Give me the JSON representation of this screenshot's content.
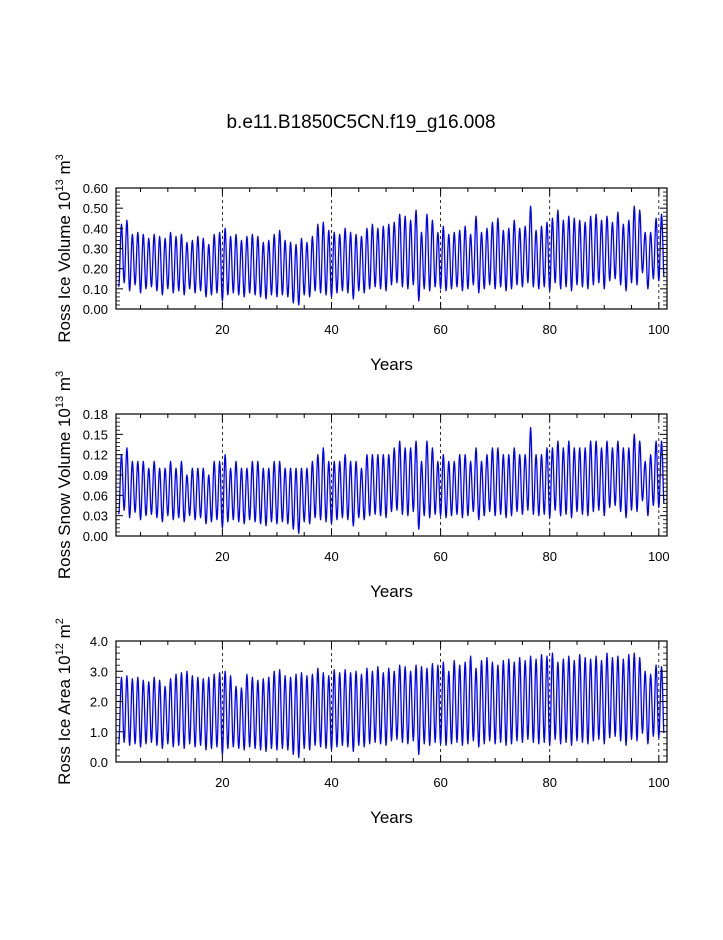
{
  "title": "b.e11.B1850C5CN.f19_g16.008",
  "colors": {
    "series": "#0000ff",
    "axis": "#000000",
    "grid": "#000000",
    "background": "#ffffff"
  },
  "chart_data": [
    {
      "type": "line",
      "ylabel": {
        "main": "Ross Ice Volume 10",
        "sup1": "13",
        "mid": " m",
        "sup2": "3"
      },
      "xlabel": "Years",
      "xlim": [
        0.5,
        101.5
      ],
      "xticks": [
        20,
        40,
        60,
        80,
        100
      ],
      "xtick_labels": [
        "20",
        "40",
        "60",
        "80",
        "100"
      ],
      "ylim": [
        0,
        0.6
      ],
      "yticks": [
        0,
        0.1,
        0.2,
        0.3,
        0.4,
        0.5,
        0.6
      ],
      "ytick_labels": [
        "0.00",
        "0.10",
        "0.20",
        "0.30",
        "0.40",
        "0.50",
        "0.60"
      ],
      "grid": "dashed vertical at major x ticks",
      "annual_max": [
        0.42,
        0.44,
        0.37,
        0.38,
        0.37,
        0.35,
        0.37,
        0.36,
        0.35,
        0.38,
        0.36,
        0.37,
        0.33,
        0.34,
        0.36,
        0.35,
        0.32,
        0.37,
        0.38,
        0.4,
        0.36,
        0.37,
        0.34,
        0.36,
        0.37,
        0.36,
        0.33,
        0.34,
        0.37,
        0.39,
        0.34,
        0.33,
        0.32,
        0.35,
        0.33,
        0.36,
        0.42,
        0.43,
        0.39,
        0.38,
        0.37,
        0.4,
        0.38,
        0.37,
        0.36,
        0.4,
        0.42,
        0.4,
        0.41,
        0.42,
        0.43,
        0.47,
        0.46,
        0.44,
        0.49,
        0.38,
        0.47,
        0.44,
        0.38,
        0.41,
        0.37,
        0.38,
        0.39,
        0.41,
        0.37,
        0.46,
        0.38,
        0.4,
        0.43,
        0.45,
        0.39,
        0.4,
        0.44,
        0.4,
        0.41,
        0.51,
        0.39,
        0.41,
        0.43,
        0.45,
        0.49,
        0.44,
        0.46,
        0.45,
        0.44,
        0.43,
        0.46,
        0.47,
        0.44,
        0.46,
        0.43,
        0.48,
        0.42,
        0.44,
        0.51,
        0.49,
        0.38,
        0.38,
        0.45,
        0.47
      ],
      "annual_min": [
        0.11,
        0.13,
        0.09,
        0.12,
        0.08,
        0.1,
        0.11,
        0.09,
        0.07,
        0.1,
        0.08,
        0.09,
        0.07,
        0.1,
        0.08,
        0.09,
        0.06,
        0.07,
        0.08,
        0.04,
        0.07,
        0.08,
        0.07,
        0.06,
        0.08,
        0.07,
        0.06,
        0.05,
        0.07,
        0.06,
        0.07,
        0.06,
        0.03,
        0.02,
        0.07,
        0.06,
        0.09,
        0.08,
        0.07,
        0.06,
        0.08,
        0.09,
        0.08,
        0.05,
        0.09,
        0.08,
        0.1,
        0.11,
        0.1,
        0.09,
        0.12,
        0.13,
        0.11,
        0.1,
        0.12,
        0.04,
        0.1,
        0.09,
        0.11,
        0.1,
        0.09,
        0.1,
        0.11,
        0.09,
        0.1,
        0.12,
        0.08,
        0.1,
        0.12,
        0.1,
        0.11,
        0.09,
        0.1,
        0.12,
        0.11,
        0.13,
        0.11,
        0.1,
        0.11,
        0.09,
        0.13,
        0.1,
        0.11,
        0.09,
        0.12,
        0.11,
        0.1,
        0.12,
        0.13,
        0.1,
        0.14,
        0.15,
        0.12,
        0.09,
        0.13,
        0.12,
        0.18,
        0.1,
        0.15,
        0.14
      ]
    },
    {
      "type": "line",
      "ylabel": {
        "main": "Ross Snow Volume 10",
        "sup1": "13",
        "mid": " m",
        "sup2": "3"
      },
      "xlabel": "Years",
      "xlim": [
        0.5,
        101.5
      ],
      "xticks": [
        20,
        40,
        60,
        80,
        100
      ],
      "xtick_labels": [
        "20",
        "40",
        "60",
        "80",
        "100"
      ],
      "ylim": [
        0,
        0.18
      ],
      "yticks": [
        0,
        0.03,
        0.06,
        0.09,
        0.12,
        0.15,
        0.18
      ],
      "ytick_labels": [
        "0.00",
        "0.03",
        "0.06",
        "0.09",
        "0.12",
        "0.15",
        "0.18"
      ],
      "grid": "dashed vertical at major x ticks",
      "annual_max": [
        0.12,
        0.13,
        0.11,
        0.11,
        0.11,
        0.1,
        0.11,
        0.1,
        0.1,
        0.11,
        0.1,
        0.11,
        0.09,
        0.1,
        0.1,
        0.1,
        0.09,
        0.11,
        0.11,
        0.12,
        0.1,
        0.11,
        0.1,
        0.1,
        0.11,
        0.11,
        0.1,
        0.1,
        0.11,
        0.11,
        0.1,
        0.1,
        0.1,
        0.1,
        0.1,
        0.11,
        0.12,
        0.13,
        0.11,
        0.11,
        0.11,
        0.12,
        0.11,
        0.11,
        0.1,
        0.12,
        0.12,
        0.12,
        0.12,
        0.12,
        0.13,
        0.14,
        0.13,
        0.13,
        0.14,
        0.11,
        0.14,
        0.13,
        0.11,
        0.12,
        0.11,
        0.11,
        0.12,
        0.12,
        0.11,
        0.13,
        0.11,
        0.12,
        0.13,
        0.13,
        0.12,
        0.12,
        0.13,
        0.12,
        0.12,
        0.16,
        0.12,
        0.12,
        0.13,
        0.13,
        0.14,
        0.13,
        0.14,
        0.13,
        0.13,
        0.13,
        0.14,
        0.14,
        0.13,
        0.14,
        0.13,
        0.14,
        0.13,
        0.13,
        0.15,
        0.14,
        0.11,
        0.12,
        0.14,
        0.14
      ],
      "annual_min": [
        0.032,
        0.038,
        0.027,
        0.035,
        0.024,
        0.03,
        0.032,
        0.027,
        0.021,
        0.03,
        0.024,
        0.027,
        0.021,
        0.03,
        0.024,
        0.027,
        0.018,
        0.021,
        0.024,
        0.012,
        0.021,
        0.024,
        0.021,
        0.018,
        0.024,
        0.021,
        0.018,
        0.015,
        0.021,
        0.018,
        0.021,
        0.018,
        0.01,
        0.004,
        0.021,
        0.018,
        0.027,
        0.024,
        0.021,
        0.018,
        0.024,
        0.027,
        0.024,
        0.015,
        0.027,
        0.024,
        0.03,
        0.032,
        0.03,
        0.027,
        0.036,
        0.038,
        0.032,
        0.03,
        0.036,
        0.01,
        0.03,
        0.027,
        0.032,
        0.03,
        0.027,
        0.03,
        0.032,
        0.027,
        0.03,
        0.036,
        0.024,
        0.03,
        0.036,
        0.03,
        0.032,
        0.027,
        0.03,
        0.036,
        0.032,
        0.038,
        0.032,
        0.03,
        0.032,
        0.027,
        0.038,
        0.03,
        0.032,
        0.027,
        0.036,
        0.032,
        0.03,
        0.036,
        0.038,
        0.03,
        0.042,
        0.045,
        0.036,
        0.027,
        0.038,
        0.036,
        0.052,
        0.03,
        0.045,
        0.042
      ]
    },
    {
      "type": "line",
      "ylabel": {
        "main": "Ross Ice Area 10",
        "sup1": "12",
        "mid": " m",
        "sup2": "2"
      },
      "xlabel": "Years",
      "xlim": [
        0.5,
        101.5
      ],
      "xticks": [
        20,
        40,
        60,
        80,
        100
      ],
      "xtick_labels": [
        "20",
        "40",
        "60",
        "80",
        "100"
      ],
      "ylim": [
        0,
        4.0
      ],
      "yticks": [
        0,
        1,
        2,
        3,
        4
      ],
      "ytick_labels": [
        "0.0",
        "1.0",
        "2.0",
        "3.0",
        "4.0"
      ],
      "grid": "dashed vertical at major x ticks",
      "annual_max": [
        2.8,
        2.85,
        2.75,
        2.8,
        2.7,
        2.65,
        2.8,
        2.7,
        2.5,
        2.75,
        2.9,
        2.95,
        3.0,
        2.85,
        2.8,
        2.75,
        2.8,
        2.9,
        2.95,
        3.0,
        2.85,
        2.5,
        2.45,
        2.9,
        2.8,
        2.7,
        2.75,
        2.8,
        3.0,
        3.05,
        2.85,
        2.8,
        2.9,
        2.95,
        2.85,
        2.9,
        3.1,
        2.95,
        2.85,
        3.05,
        2.95,
        3.05,
        2.95,
        3.0,
        2.9,
        3.1,
        3.0,
        3.15,
        2.95,
        3.1,
        3.0,
        3.2,
        3.15,
        3.0,
        3.2,
        3.15,
        3.1,
        3.25,
        3.2,
        3.3,
        3.0,
        3.35,
        3.2,
        3.3,
        3.5,
        3.1,
        3.35,
        3.45,
        3.3,
        3.2,
        3.35,
        3.4,
        3.3,
        3.45,
        3.35,
        3.5,
        3.4,
        3.55,
        3.5,
        3.6,
        3.3,
        3.4,
        3.5,
        3.35,
        3.55,
        3.45,
        3.4,
        3.5,
        3.35,
        3.6,
        3.45,
        3.5,
        3.4,
        3.55,
        3.6,
        3.45,
        3.0,
        2.9,
        3.2,
        3.15
      ],
      "annual_min": [
        0.6,
        0.65,
        0.55,
        0.6,
        0.5,
        0.6,
        0.65,
        0.55,
        0.45,
        0.6,
        0.5,
        0.55,
        0.45,
        0.6,
        0.5,
        0.55,
        0.4,
        0.45,
        0.5,
        0.25,
        0.45,
        0.5,
        0.45,
        0.4,
        0.5,
        0.45,
        0.4,
        0.35,
        0.45,
        0.4,
        0.45,
        0.4,
        0.25,
        0.15,
        0.45,
        0.4,
        0.55,
        0.5,
        0.45,
        0.4,
        0.5,
        0.55,
        0.5,
        0.35,
        0.55,
        0.5,
        0.6,
        0.65,
        0.6,
        0.55,
        0.7,
        0.75,
        0.65,
        0.6,
        0.7,
        0.25,
        0.6,
        0.55,
        0.65,
        0.6,
        0.55,
        0.6,
        0.65,
        0.55,
        0.6,
        0.7,
        0.5,
        0.6,
        0.7,
        0.6,
        0.65,
        0.55,
        0.6,
        0.7,
        0.65,
        0.75,
        0.65,
        0.6,
        0.65,
        0.55,
        0.75,
        0.6,
        0.65,
        0.55,
        0.7,
        0.65,
        0.6,
        0.7,
        0.75,
        0.6,
        0.8,
        0.85,
        0.7,
        0.55,
        0.75,
        0.7,
        0.95,
        0.6,
        0.85,
        0.8
      ]
    }
  ]
}
